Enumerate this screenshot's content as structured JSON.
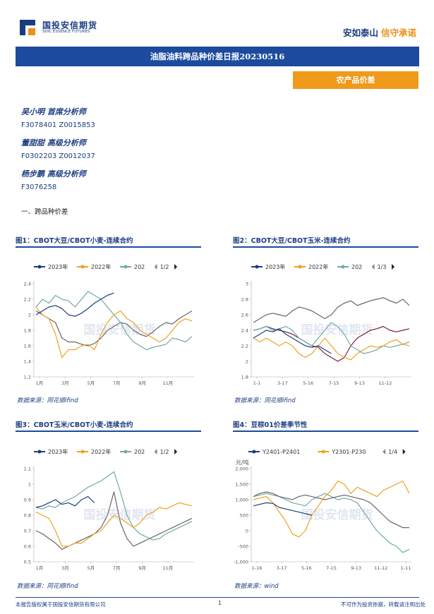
{
  "header": {
    "logo_cn": "国投安信期货",
    "logo_en": "SDIC ESSENCE FUTURES",
    "slogan_a": "安如泰山",
    "slogan_b": "信守承诺"
  },
  "report": {
    "title": "油脂油料跨品种价差日报20230516",
    "tag": "农产品价差"
  },
  "authors": [
    {
      "name": "吴小明 首席分析师",
      "id": "F3078401 Z0015853"
    },
    {
      "name": "董甜甜 高级分析师",
      "id": "F0302203 Z0012037"
    },
    {
      "name": "杨步鹏 高级分析师",
      "id": "F3076258"
    }
  ],
  "section_heading": "一、跨品种价差",
  "watermark": "国投安信期货",
  "figures": [
    {
      "title": "图1：CBOT大豆/CBOT小麦-连续合约",
      "source": "数据来源：同花顺ifind",
      "legend": [
        {
          "label": "2023年",
          "color": "#1b3d80"
        },
        {
          "label": "2022年",
          "color": "#f0a020"
        },
        {
          "label": "202",
          "color": "#6fa8a8"
        }
      ],
      "pager": "1/2",
      "chart_data": {
        "type": "line",
        "ylim": [
          1.2,
          2.4
        ],
        "yticks": [
          "1.2",
          "1.4",
          "1.6",
          "1.8",
          "2",
          "2.2",
          "2.4"
        ],
        "xticks": [
          "1月",
          "3月",
          "5月",
          "7月",
          "9月",
          "11月"
        ],
        "series": [
          {
            "name": "2023年",
            "color": "#1b3d80",
            "values": [
              2.0,
              2.05,
              2.1,
              2.12,
              2.08,
              2.0,
              1.98,
              2.02,
              2.08,
              2.15,
              2.2,
              2.25,
              2.28
            ]
          },
          {
            "name": "2022年",
            "color": "#f0a020",
            "values": [
              2.1,
              2.0,
              1.95,
              1.75,
              1.45,
              1.55,
              1.55,
              1.6,
              1.62,
              1.55,
              1.75,
              1.9,
              2.0,
              2.05,
              1.95,
              1.9,
              1.8,
              1.75,
              1.7,
              1.65,
              1.7,
              1.8,
              1.9,
              1.95,
              1.92
            ]
          },
          {
            "name": "202",
            "color": "#6fa8a8",
            "values": [
              2.1,
              2.2,
              2.15,
              2.25,
              2.2,
              2.18,
              2.1,
              2.2,
              2.3,
              2.25,
              2.2,
              2.1,
              2.0,
              1.9,
              1.75,
              1.65,
              1.6,
              1.55,
              1.58,
              1.6,
              1.62,
              1.7,
              1.68,
              1.65,
              1.72
            ]
          },
          {
            "name": "",
            "color": "#666666",
            "values": [
              2.05,
              2.0,
              1.95,
              1.9,
              1.7,
              1.65,
              1.65,
              1.62,
              1.6,
              1.63,
              1.7,
              1.8,
              1.85,
              1.9,
              1.88,
              1.8,
              1.75,
              1.72,
              1.78,
              1.85,
              1.9,
              1.88,
              1.95,
              2.0,
              2.05
            ]
          }
        ]
      }
    },
    {
      "title": "图2：CBOT大豆/CBOT玉米-连续合约",
      "source": "数据来源：同花顺ifind",
      "legend": [
        {
          "label": "2023年",
          "color": "#1b3d80"
        },
        {
          "label": "2022年",
          "color": "#f0a020"
        },
        {
          "label": "202",
          "color": "#6fa8a8"
        }
      ],
      "pager": "1/3",
      "chart_data": {
        "type": "line",
        "ylim": [
          1.8,
          3.0
        ],
        "yticks": [
          "1.8",
          "2",
          "2.2",
          "2.4",
          "2.6",
          "2.8",
          "3"
        ],
        "xticks": [
          "1-1",
          "3-17",
          "5-16",
          "7-15",
          "9-13",
          "11-12"
        ],
        "series": [
          {
            "name": "2023年",
            "color": "#1b3d80",
            "values": [
              2.3,
              2.35,
              2.4,
              2.38,
              2.42,
              2.35,
              2.3,
              2.25,
              2.2,
              2.18,
              2.2,
              2.15,
              2.1
            ]
          },
          {
            "name": "2022年",
            "color": "#f0a020",
            "values": [
              2.3,
              2.25,
              2.3,
              2.25,
              2.2,
              2.25,
              2.2,
              2.1,
              2.05,
              2.1,
              2.2,
              2.3,
              2.2,
              2.1,
              2.05,
              2.02,
              2.1,
              2.15,
              2.2,
              2.18,
              2.2,
              2.25,
              2.28,
              2.22,
              2.2
            ]
          },
          {
            "name": "202",
            "color": "#6fa8a8",
            "values": [
              2.4,
              2.42,
              2.45,
              2.4,
              2.42,
              2.45,
              2.4,
              2.3,
              2.25,
              2.2,
              2.3,
              2.4,
              2.5,
              2.45,
              2.35,
              2.2,
              2.15,
              2.1,
              2.12,
              2.15,
              2.2,
              2.18,
              2.2,
              2.22,
              2.25
            ]
          },
          {
            "name": "",
            "color": "#666666",
            "values": [
              2.5,
              2.55,
              2.6,
              2.62,
              2.6,
              2.58,
              2.65,
              2.7,
              2.68,
              2.65,
              2.6,
              2.55,
              2.6,
              2.7,
              2.75,
              2.78,
              2.72,
              2.75,
              2.78,
              2.8,
              2.82,
              2.78,
              2.75,
              2.8,
              2.72
            ]
          },
          {
            "name": "",
            "color": "#7a1f3d",
            "values": [
              2.4,
              2.42,
              2.45,
              2.42,
              2.4,
              2.38,
              2.35,
              2.3,
              2.25,
              2.2,
              2.18,
              2.1,
              2.05,
              2.0,
              2.05,
              2.2,
              2.3,
              2.35,
              2.4,
              2.42,
              2.45,
              2.4,
              2.38,
              2.4,
              2.42
            ]
          }
        ]
      }
    },
    {
      "title": "图3：CBOT玉米/CBOT小麦-连续合约",
      "source": "数据来源：同花顺ifind",
      "legend": [
        {
          "label": "2023年",
          "color": "#1b3d80"
        },
        {
          "label": "2022年",
          "color": "#f0a020"
        },
        {
          "label": "202",
          "color": "#6fa8a8"
        }
      ],
      "pager": "1/2",
      "chart_data": {
        "type": "line",
        "ylim": [
          0.5,
          1.1
        ],
        "yticks": [
          "0.5",
          "0.6",
          "0.7",
          "0.8",
          "0.9",
          "1",
          "1.1"
        ],
        "xticks": [
          "1月",
          "3月",
          "5月",
          "7月",
          "9月",
          "11月"
        ],
        "series": [
          {
            "name": "2023年",
            "color": "#1b3d80",
            "values": [
              0.85,
              0.86,
              0.88,
              0.9,
              0.87,
              0.88,
              0.86,
              0.9,
              0.92,
              0.88
            ]
          },
          {
            "name": "2022年",
            "color": "#f0a020",
            "values": [
              0.82,
              0.8,
              0.78,
              0.7,
              0.6,
              0.6,
              0.62,
              0.62,
              0.65,
              0.68,
              0.7,
              0.75,
              0.8,
              0.78,
              0.75,
              0.72,
              0.75,
              0.8,
              0.82,
              0.85,
              0.84,
              0.86,
              0.88,
              0.87,
              0.86
            ]
          },
          {
            "name": "202",
            "color": "#6fa8a8",
            "values": [
              0.85,
              0.84,
              0.86,
              0.85,
              0.88,
              0.9,
              0.92,
              0.95,
              0.98,
              1.0,
              1.02,
              1.05,
              1.08,
              0.95,
              0.8,
              0.72,
              0.68,
              0.66,
              0.64,
              0.65,
              0.68,
              0.7,
              0.72,
              0.74,
              0.76
            ]
          },
          {
            "name": "",
            "color": "#666666",
            "values": [
              0.7,
              0.68,
              0.65,
              0.62,
              0.58,
              0.6,
              0.62,
              0.64,
              0.66,
              0.68,
              0.72,
              0.8,
              0.95,
              0.75,
              0.65,
              0.6,
              0.62,
              0.64,
              0.66,
              0.68,
              0.7,
              0.72,
              0.74,
              0.76,
              0.78
            ]
          }
        ]
      }
    },
    {
      "title": "图4：豆棕01价差季节性",
      "source": "数据来源：wind",
      "unit": "元/吨",
      "legend": [
        {
          "label": "Y2401-P2401",
          "color": "#1b3d80"
        },
        {
          "label": "Y2301-P230",
          "color": "#f0a020"
        }
      ],
      "pager": "1/4",
      "chart_data": {
        "type": "line",
        "ylim": [
          -1000,
          2000
        ],
        "yticks": [
          "-1,000",
          "-500",
          "0",
          "500",
          "1,000",
          "1,500",
          "2,000"
        ],
        "xticks": [
          "1-16",
          "3-17",
          "5-16",
          "7-15",
          "9-13",
          "11-12",
          "1-11"
        ],
        "series": [
          {
            "name": "Y2401-P2401",
            "color": "#1b3d80",
            "values": [
              800,
              850,
              900,
              880,
              750,
              700,
              650,
              600,
              550,
              500
            ]
          },
          {
            "name": "Y2301-P230",
            "color": "#f0a020",
            "values": [
              1000,
              1050,
              1100,
              900,
              600,
              300,
              -100,
              -200,
              0,
              500,
              800,
              1100,
              1300,
              1600,
              1500,
              1200,
              1400,
              1300,
              1200,
              1100,
              1300,
              1400,
              1500,
              1600,
              1200
            ]
          },
          {
            "name": "",
            "color": "#6fa8a8",
            "values": [
              1100,
              1150,
              1200,
              1150,
              1100,
              1000,
              900,
              850,
              800,
              1000,
              1100,
              1200,
              1100,
              1000,
              1050,
              1000,
              900,
              600,
              300,
              0,
              -200,
              -400,
              -500,
              -700,
              -600
            ]
          },
          {
            "name": "",
            "color": "#666666",
            "values": [
              1100,
              1200,
              1250,
              1200,
              1100,
              1050,
              1000,
              1100,
              1150,
              1100,
              1050,
              1000,
              1050,
              1100,
              1150,
              1100,
              1050,
              1000,
              900,
              700,
              500,
              300,
              200,
              100,
              100
            ]
          }
        ]
      }
    }
  ],
  "footer": {
    "copyright": "本报告版权属于国投安信期货有限公司",
    "page": "1",
    "disclaimer": "不可作为投资依据，转载请注明出处"
  }
}
